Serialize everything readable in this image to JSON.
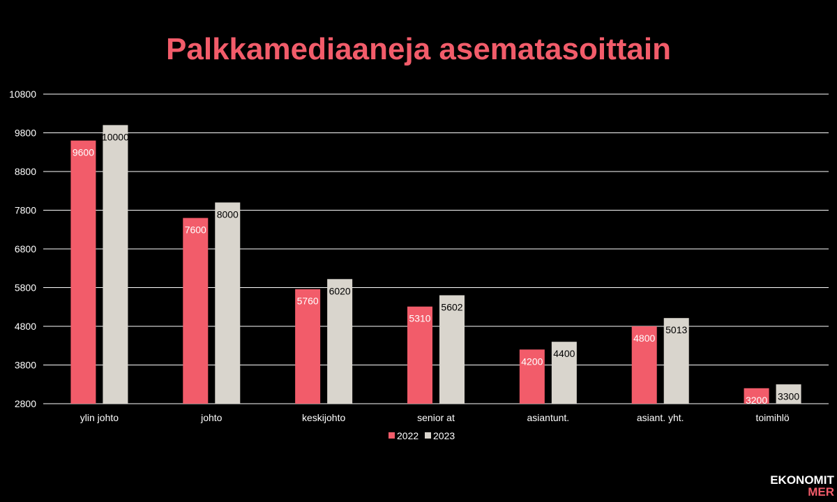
{
  "title": "Palkkamediaaneja asematasoittain",
  "logo": {
    "line1": "EKONOMIT",
    "line2": "MER"
  },
  "colors": {
    "background": "#000000",
    "accent": "#f25c6a",
    "series_2023": "#d9d5cd",
    "grid": "#ffffff",
    "text": "#ffffff"
  },
  "chart_data": {
    "type": "bar",
    "title": "Palkkamediaaneja asematasoittain",
    "categories": [
      "ylin johto",
      "johto",
      "keskijohto",
      "senior at",
      "asiantunt.",
      "asiant. yht.",
      "toimihlö"
    ],
    "series": [
      {
        "name": "2022",
        "color": "#f25c6a",
        "values": [
          9600,
          7600,
          5760,
          5310,
          4200,
          4800,
          3200
        ]
      },
      {
        "name": "2023",
        "color": "#d9d5cd",
        "values": [
          10000,
          8000,
          6020,
          5602,
          4400,
          5013,
          3300
        ]
      }
    ],
    "yticks": [
      2800,
      3800,
      4800,
      5800,
      6800,
      7800,
      8800,
      9800,
      10800
    ],
    "ylim": [
      2800,
      10800
    ],
    "grid": true,
    "legend": "bottom-center",
    "xlabel": "",
    "ylabel": ""
  }
}
